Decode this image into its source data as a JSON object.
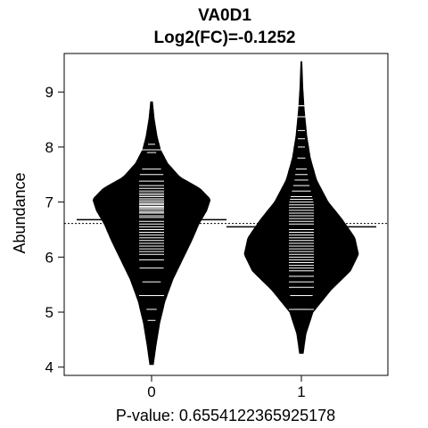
{
  "chart_data": {
    "type": "beanplot",
    "title": "VA0D1",
    "subtitle": "Log2(FC)=-0.1252",
    "xlabel": "P-value: 0.6554122365925178",
    "ylabel": "Abundance",
    "categories": [
      "0",
      "1"
    ],
    "ylim": [
      3.85,
      9.7
    ],
    "yticks": [
      4,
      5,
      6,
      7,
      8,
      9
    ],
    "overall_mean": 6.61,
    "groups": [
      {
        "name": "0",
        "mean": 6.68,
        "range": [
          4.05,
          8.82
        ],
        "density": [
          [
            4.05,
            0.02
          ],
          [
            4.4,
            0.05
          ],
          [
            4.8,
            0.09
          ],
          [
            5.2,
            0.15
          ],
          [
            5.6,
            0.24
          ],
          [
            6.0,
            0.36
          ],
          [
            6.3,
            0.45
          ],
          [
            6.6,
            0.53
          ],
          [
            6.85,
            0.62
          ],
          [
            7.05,
            0.66
          ],
          [
            7.25,
            0.54
          ],
          [
            7.45,
            0.32
          ],
          [
            7.7,
            0.18
          ],
          [
            7.95,
            0.1
          ],
          [
            8.2,
            0.06
          ],
          [
            8.5,
            0.03
          ],
          [
            8.82,
            0.01
          ]
        ],
        "observations": [
          4.85,
          5.05,
          5.3,
          5.55,
          5.8,
          5.95,
          6.05,
          6.1,
          6.15,
          6.2,
          6.25,
          6.3,
          6.35,
          6.4,
          6.45,
          6.5,
          6.55,
          6.6,
          6.65,
          6.68,
          6.72,
          6.75,
          6.8,
          6.82,
          6.85,
          6.88,
          6.9,
          6.92,
          6.95,
          6.97,
          7.0,
          7.03,
          7.06,
          7.1,
          7.13,
          7.16,
          7.2,
          7.25,
          7.3,
          7.38,
          7.5,
          7.6,
          7.9,
          8.05
        ],
        "long_observations": [
          5.3,
          7.0,
          7.95
        ]
      },
      {
        "name": "1",
        "mean": 6.55,
        "range": [
          4.25,
          9.55
        ],
        "density": [
          [
            4.25,
            0.02
          ],
          [
            4.6,
            0.05
          ],
          [
            5.0,
            0.13
          ],
          [
            5.4,
            0.33
          ],
          [
            5.75,
            0.55
          ],
          [
            6.05,
            0.64
          ],
          [
            6.35,
            0.6
          ],
          [
            6.7,
            0.45
          ],
          [
            7.0,
            0.3
          ],
          [
            7.4,
            0.17
          ],
          [
            7.8,
            0.1
          ],
          [
            8.2,
            0.06
          ],
          [
            8.7,
            0.03
          ],
          [
            9.1,
            0.015
          ],
          [
            9.55,
            0.005
          ]
        ],
        "observations": [
          5.05,
          5.3,
          5.45,
          5.55,
          5.65,
          5.75,
          5.8,
          5.85,
          5.9,
          5.95,
          6.0,
          6.05,
          6.1,
          6.15,
          6.2,
          6.25,
          6.3,
          6.35,
          6.4,
          6.45,
          6.5,
          6.55,
          6.6,
          6.65,
          6.7,
          6.75,
          6.8,
          6.85,
          6.9,
          6.95,
          7.0,
          7.05,
          7.1,
          7.2,
          7.3,
          7.4,
          7.5,
          7.6,
          7.8,
          8.0,
          8.15,
          8.3,
          8.55,
          8.75
        ],
        "long_observations": [
          5.05,
          8.55,
          8.75
        ]
      }
    ]
  }
}
